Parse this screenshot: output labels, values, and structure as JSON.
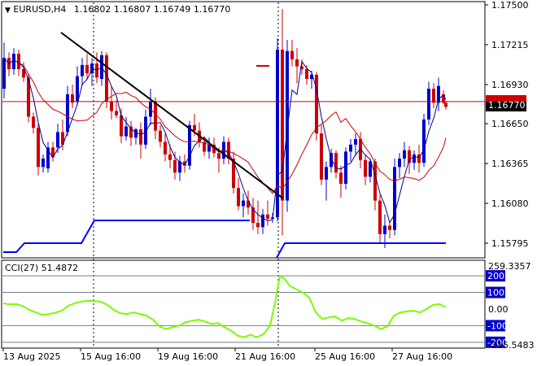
{
  "window": {
    "symbol_label": "EURUSD,H4",
    "ohlc": [
      "1.16802",
      "1.16807",
      "1.16749",
      "1.16770"
    ],
    "background": "#ffffff"
  },
  "price_axis": {
    "labels": [
      "1.17500",
      "1.17215",
      "1.16930",
      "1.16650",
      "1.16365",
      "1.16080",
      "1.15795"
    ],
    "current_price": "1.16770",
    "current_price_color": "#000000",
    "redline_price": "1.16808"
  },
  "indicator": {
    "label": "CCI(27) 51.4872",
    "axis_labels": [
      "259.3357",
      "200",
      "100",
      "0.00",
      "-100",
      "-200",
      "-215.5483"
    ],
    "level_color": "#0000cd",
    "line_color": "#7cfc00"
  },
  "time_axis": {
    "labels": [
      "13 Aug 2025",
      "15 Aug 16:00",
      "19 Aug 16:00",
      "21 Aug 16:00",
      "25 Aug 16:00",
      "27 Aug 16:00"
    ]
  },
  "colors": {
    "bull_candle": "#0000cd",
    "bear_candle": "#cd0000",
    "fast_ma": "#00008b",
    "slow_ma": "#cd0000",
    "trend_line": "#000000",
    "support_line": "#0000ff",
    "grid": "#708090"
  },
  "chart_data": {
    "type": "candlestick",
    "x": [
      "13 Aug 2025",
      "15 Aug 16:00",
      "19 Aug 16:00",
      "21 Aug 16:00",
      "25 Aug 16:00",
      "27 Aug 16:00"
    ],
    "ylim": [
      1.1569,
      1.1752
    ],
    "last": {
      "open": 1.16802,
      "high": 1.16807,
      "low": 1.16749,
      "close": 1.1677
    },
    "support_level": [
      1.1595,
      1.1578
    ],
    "cci_period": 27,
    "cci_value": 51.4872,
    "cci_range": [
      -215.5483,
      259.3357
    ]
  }
}
